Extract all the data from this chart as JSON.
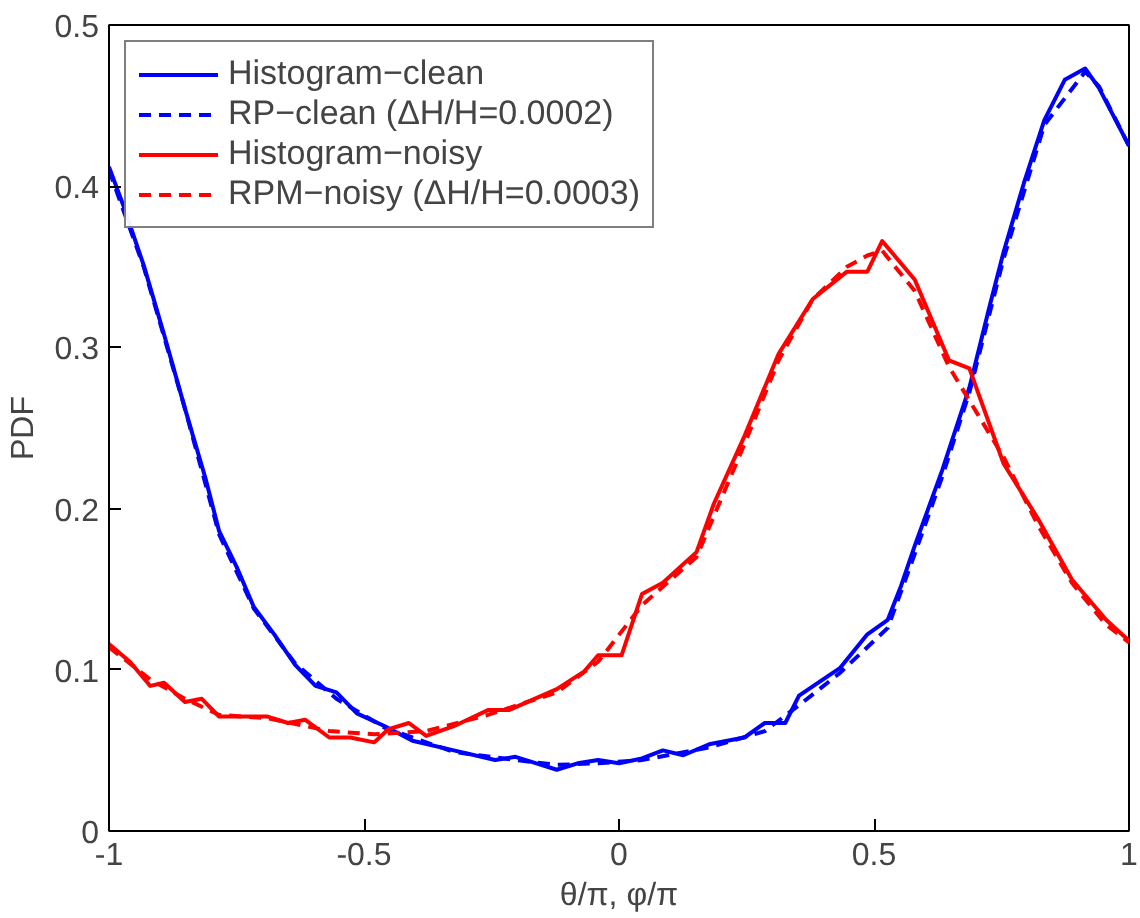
{
  "chart_data": {
    "type": "line",
    "xlabel": "θ/π, φ/π",
    "ylabel": "PDF",
    "xlim": [
      -1,
      1
    ],
    "ylim": [
      0,
      0.5
    ],
    "xticks": [
      -1,
      -0.5,
      0,
      0.5,
      1
    ],
    "yticks": [
      0,
      0.1,
      0.2,
      0.3,
      0.4,
      0.5
    ],
    "grid": false,
    "legend": "top left",
    "series": [
      {
        "name": "Histogram−clean",
        "color": "#0000ff",
        "line_style": "solid",
        "x": [
          -1,
          -0.973,
          -0.932,
          -0.892,
          -0.851,
          -0.811,
          -0.784,
          -0.75,
          -0.716,
          -0.676,
          -0.635,
          -0.595,
          -0.554,
          -0.514,
          -0.459,
          -0.405,
          -0.324,
          -0.243,
          -0.203,
          -0.162,
          -0.122,
          -0.081,
          -0.041,
          0,
          0.045,
          0.086,
          0.126,
          0.179,
          0.246,
          0.286,
          0.326,
          0.353,
          0.433,
          0.487,
          0.527,
          0.553,
          0.58,
          0.634,
          0.687,
          0.727,
          0.754,
          0.794,
          0.834,
          0.874,
          0.914,
          0.941,
          1
        ],
        "values": [
          0.412,
          0.389,
          0.351,
          0.308,
          0.262,
          0.219,
          0.186,
          0.164,
          0.139,
          0.122,
          0.103,
          0.09,
          0.086,
          0.073,
          0.065,
          0.056,
          0.05,
          0.044,
          0.046,
          0.042,
          0.038,
          0.042,
          0.044,
          0.042,
          0.045,
          0.05,
          0.047,
          0.054,
          0.058,
          0.067,
          0.067,
          0.084,
          0.101,
          0.122,
          0.131,
          0.152,
          0.177,
          0.224,
          0.275,
          0.326,
          0.359,
          0.402,
          0.441,
          0.466,
          0.473,
          0.461,
          0.425
        ]
      },
      {
        "name": "RP−clean (ΔH/H=0.0002)",
        "color": "#0000ff",
        "line_style": "dashed",
        "x": [
          -1,
          -0.932,
          -0.851,
          -0.784,
          -0.716,
          -0.635,
          -0.554,
          -0.459,
          -0.324,
          -0.203,
          -0.122,
          -0.041,
          0.045,
          0.179,
          0.286,
          0.353,
          0.433,
          0.527,
          0.58,
          0.634,
          0.687,
          0.754,
          0.834,
          0.914,
          0.941,
          1
        ],
        "values": [
          0.41,
          0.35,
          0.262,
          0.184,
          0.138,
          0.104,
          0.082,
          0.064,
          0.049,
          0.044,
          0.041,
          0.042,
          0.044,
          0.052,
          0.062,
          0.078,
          0.098,
          0.126,
          0.172,
          0.22,
          0.272,
          0.355,
          0.438,
          0.471,
          0.462,
          0.425
        ]
      },
      {
        "name": "Histogram−noisy",
        "color": "#ff0000",
        "line_style": "solid",
        "x": [
          -1,
          -0.959,
          -0.919,
          -0.892,
          -0.851,
          -0.818,
          -0.784,
          -0.689,
          -0.649,
          -0.615,
          -0.568,
          -0.527,
          -0.48,
          -0.453,
          -0.412,
          -0.378,
          -0.324,
          -0.257,
          -0.216,
          -0.122,
          -0.068,
          -0.041,
          0.005,
          0.045,
          0.086,
          0.152,
          0.186,
          0.246,
          0.313,
          0.38,
          0.447,
          0.487,
          0.516,
          0.58,
          0.647,
          0.687,
          0.754,
          0.821,
          0.888,
          0.955,
          1
        ],
        "values": [
          0.116,
          0.105,
          0.09,
          0.092,
          0.08,
          0.082,
          0.071,
          0.071,
          0.067,
          0.069,
          0.058,
          0.058,
          0.055,
          0.063,
          0.067,
          0.059,
          0.065,
          0.075,
          0.075,
          0.088,
          0.099,
          0.109,
          0.109,
          0.147,
          0.154,
          0.173,
          0.203,
          0.245,
          0.296,
          0.33,
          0.347,
          0.347,
          0.366,
          0.342,
          0.292,
          0.287,
          0.228,
          0.194,
          0.156,
          0.131,
          0.118
        ]
      },
      {
        "name": "RPM−noisy (ΔH/H=0.0003)",
        "color": "#ff0000",
        "line_style": "dashed",
        "x": [
          -1,
          -0.919,
          -0.851,
          -0.784,
          -0.689,
          -0.568,
          -0.48,
          -0.378,
          -0.257,
          -0.122,
          -0.041,
          0.045,
          0.152,
          0.246,
          0.313,
          0.38,
          0.447,
          0.487,
          0.516,
          0.58,
          0.647,
          0.754,
          0.821,
          0.888,
          0.955,
          1
        ],
        "values": [
          0.114,
          0.094,
          0.082,
          0.072,
          0.07,
          0.062,
          0.06,
          0.062,
          0.072,
          0.086,
          0.105,
          0.14,
          0.17,
          0.24,
          0.292,
          0.33,
          0.35,
          0.357,
          0.36,
          0.335,
          0.288,
          0.232,
          0.19,
          0.154,
          0.128,
          0.117
        ]
      }
    ]
  }
}
